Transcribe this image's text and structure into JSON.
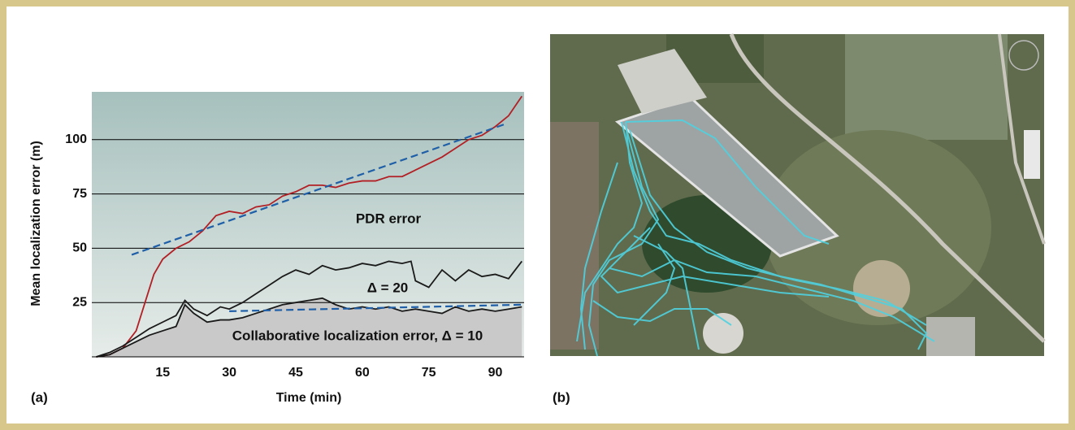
{
  "chart_data": {
    "type": "line",
    "ylabel": "Mean localization error (m)",
    "xlabel": "Time (min)",
    "xlim": [
      -1,
      96.5
    ],
    "ylim": [
      0,
      122
    ],
    "xticks": [
      15,
      30,
      45,
      60,
      75,
      90
    ],
    "yticks": [
      25,
      50,
      75,
      100
    ],
    "grid": true,
    "series": [
      {
        "name": "PDR error",
        "color": "#b22025",
        "x": [
          0,
          3,
          6,
          9,
          11,
          13,
          15,
          18,
          21,
          24,
          27,
          30,
          33,
          36,
          39,
          42,
          45,
          48,
          51,
          54,
          57,
          60,
          63,
          66,
          69,
          72,
          75,
          78,
          81,
          84,
          87,
          90,
          93,
          96
        ],
        "values": [
          0,
          1,
          4,
          12,
          25,
          38,
          45,
          50,
          53,
          58,
          65,
          67,
          66,
          69,
          70,
          74,
          76,
          79,
          79,
          78,
          80,
          81,
          81,
          83,
          83,
          86,
          89,
          92,
          96,
          100,
          102,
          106,
          111,
          120
        ]
      },
      {
        "name": "Δ = 20",
        "color": "#1a1a1a",
        "x": [
          0,
          3,
          6,
          9,
          12,
          15,
          18,
          20,
          22,
          25,
          28,
          30,
          33,
          36,
          39,
          42,
          45,
          48,
          51,
          54,
          57,
          60,
          63,
          66,
          69,
          71,
          72,
          75,
          78,
          81,
          84,
          87,
          90,
          93,
          96
        ],
        "values": [
          0,
          2,
          5,
          9,
          13,
          16,
          19,
          26,
          22,
          19,
          23,
          22,
          25,
          29,
          33,
          37,
          40,
          38,
          42,
          40,
          41,
          43,
          42,
          44,
          43,
          44,
          35,
          32,
          40,
          35,
          40,
          37,
          38,
          36,
          44
        ]
      },
      {
        "name": "Collaborative localization error, Δ = 10",
        "color": "#1a1a1a",
        "area": true,
        "x": [
          0,
          3,
          6,
          9,
          12,
          15,
          18,
          20,
          22,
          25,
          28,
          30,
          33,
          36,
          39,
          42,
          45,
          48,
          51,
          54,
          57,
          60,
          63,
          66,
          69,
          72,
          75,
          78,
          81,
          84,
          87,
          90,
          93,
          96
        ],
        "values": [
          0,
          1,
          4,
          7,
          10,
          12,
          14,
          24,
          20,
          16,
          17,
          17,
          18,
          20,
          22,
          24,
          25,
          26,
          27,
          24,
          22,
          23,
          22,
          23,
          21,
          22,
          21,
          20,
          23,
          21,
          22,
          21,
          22,
          23
        ]
      },
      {
        "color": "#1f5fa8",
        "dash": true,
        "x": [
          8,
          92
        ],
        "values": [
          47,
          107
        ]
      },
      {
        "color": "#1f5fa8",
        "dash": true,
        "x": [
          30,
          96
        ],
        "values": [
          21,
          24
        ]
      }
    ]
  },
  "panel_labels": [
    "(a)",
    "(b)"
  ]
}
